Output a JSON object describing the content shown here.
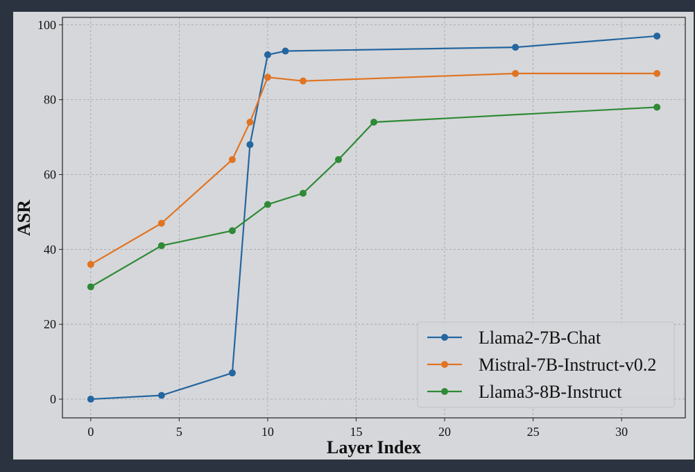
{
  "chart_data": {
    "type": "line",
    "title": "",
    "xlabel": "Layer Index",
    "ylabel": "ASR",
    "xlim": [
      -1.6,
      33.6
    ],
    "ylim": [
      -5,
      102
    ],
    "xticks": [
      0,
      5,
      10,
      15,
      20,
      25,
      30
    ],
    "yticks": [
      0,
      20,
      40,
      60,
      80,
      100
    ],
    "grid": true,
    "legend_position": "lower right",
    "series": [
      {
        "name": "Llama2-7B-Chat",
        "color": "#2466a0",
        "x": [
          0,
          4,
          8,
          9,
          10,
          11,
          24,
          32
        ],
        "y": [
          0,
          1,
          7,
          68,
          92,
          93,
          94,
          97
        ]
      },
      {
        "name": "Mistral-7B-Instruct-v0.2",
        "color": "#e07422",
        "x": [
          0,
          4,
          8,
          9,
          10,
          12,
          24,
          32
        ],
        "y": [
          36,
          47,
          64,
          74,
          86,
          85,
          87,
          87
        ]
      },
      {
        "name": "Llama3-8B-Instruct",
        "color": "#2e8a36",
        "x": [
          0,
          4,
          8,
          10,
          12,
          14,
          16,
          32
        ],
        "y": [
          30,
          41,
          45,
          52,
          55,
          64,
          74,
          78
        ]
      }
    ]
  }
}
